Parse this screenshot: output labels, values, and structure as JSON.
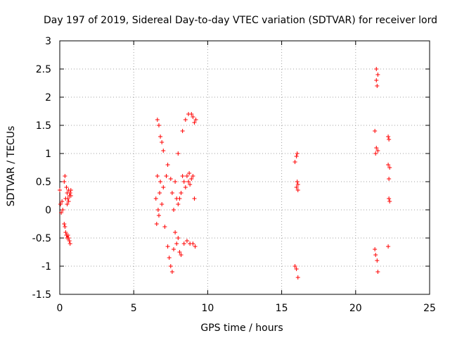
{
  "chart_data": {
    "type": "scatter",
    "title": "Day 197 of 2019, Sidereal Day-to-day VTEC variation (SDTVAR) for receiver lord",
    "xlabel": "GPS time / hours",
    "ylabel": "SDTVAR / TECUs",
    "xlim": [
      0,
      25
    ],
    "ylim": [
      -1.5,
      3
    ],
    "xticks": [
      0,
      5,
      10,
      15,
      20,
      25
    ],
    "xtick_labels": [
      "0",
      "5",
      "10",
      "15",
      "20",
      "25"
    ],
    "yticks": [
      -1.5,
      -1,
      -0.5,
      0,
      0.5,
      1,
      1.5,
      2,
      2.5,
      3
    ],
    "ytick_labels": [
      "-1.5",
      "-1",
      "-0.5",
      "0",
      "0.5",
      "1",
      "1.5",
      "2",
      "2.5",
      "3"
    ],
    "grid": true,
    "marker": "+",
    "color": "#ff0000",
    "series": [
      {
        "name": "SDTVAR",
        "x": [
          0.0,
          0.05,
          0.1,
          0.15,
          0.2,
          0.3,
          0.3,
          0.35,
          0.35,
          0.4,
          0.4,
          0.45,
          0.45,
          0.5,
          0.5,
          0.5,
          0.55,
          0.55,
          0.6,
          0.6,
          0.6,
          0.65,
          0.65,
          0.7,
          0.7,
          0.75,
          0.75,
          6.5,
          6.55,
          6.6,
          6.6,
          6.65,
          6.7,
          6.7,
          6.75,
          6.8,
          6.8,
          6.9,
          6.9,
          7.0,
          7.0,
          7.1,
          7.2,
          7.3,
          7.3,
          7.4,
          7.5,
          7.5,
          7.6,
          7.6,
          7.7,
          7.7,
          7.8,
          7.8,
          7.9,
          7.9,
          8.0,
          8.0,
          8.0,
          8.1,
          8.1,
          8.2,
          8.2,
          8.3,
          8.3,
          8.4,
          8.4,
          8.5,
          8.5,
          8.6,
          8.6,
          8.7,
          8.7,
          8.75,
          8.8,
          8.8,
          8.9,
          8.9,
          9.0,
          9.0,
          9.0,
          9.1,
          9.1,
          9.15,
          9.2,
          15.9,
          15.9,
          16.0,
          16.0,
          16.0,
          16.05,
          16.05,
          16.1,
          16.1,
          16.1,
          21.3,
          21.3,
          21.35,
          21.35,
          21.4,
          21.4,
          21.4,
          21.45,
          21.45,
          21.5,
          21.5,
          21.5,
          22.2,
          22.2,
          22.2,
          22.25,
          22.25,
          22.25,
          22.3,
          22.3
        ],
        "y": [
          0.35,
          0.1,
          -0.05,
          0.15,
          0.0,
          0.5,
          -0.25,
          0.6,
          -0.3,
          0.2,
          -0.4,
          0.4,
          -0.45,
          0.3,
          0.1,
          -0.5,
          0.2,
          -0.45,
          0.35,
          0.15,
          -0.5,
          0.25,
          -0.55,
          0.3,
          -0.6,
          0.25,
          0.35,
          0.2,
          -0.25,
          0.6,
          1.6,
          0.0,
          1.5,
          -0.1,
          0.3,
          1.3,
          0.5,
          0.1,
          1.2,
          0.4,
          1.05,
          -0.3,
          0.6,
          0.8,
          -0.65,
          -0.85,
          -1.0,
          0.55,
          -1.1,
          0.3,
          -0.7,
          0.0,
          0.5,
          -0.4,
          0.2,
          -0.6,
          0.1,
          1.0,
          -0.5,
          0.2,
          -0.75,
          0.3,
          -0.8,
          0.6,
          1.4,
          0.5,
          -0.6,
          0.4,
          1.6,
          0.6,
          -0.55,
          0.5,
          1.7,
          0.65,
          0.45,
          -0.6,
          1.7,
          0.55,
          1.65,
          0.6,
          -0.6,
          1.55,
          0.2,
          -0.65,
          1.6,
          0.85,
          -1.0,
          0.95,
          0.4,
          -1.05,
          0.5,
          1.0,
          -1.2,
          0.45,
          0.35,
          1.4,
          -0.7,
          1.0,
          -0.8,
          2.5,
          2.3,
          1.1,
          2.2,
          -0.9,
          2.4,
          1.05,
          -1.1,
          1.3,
          0.8,
          -0.65,
          0.55,
          0.2,
          1.25,
          0.75,
          0.15
        ]
      }
    ]
  }
}
